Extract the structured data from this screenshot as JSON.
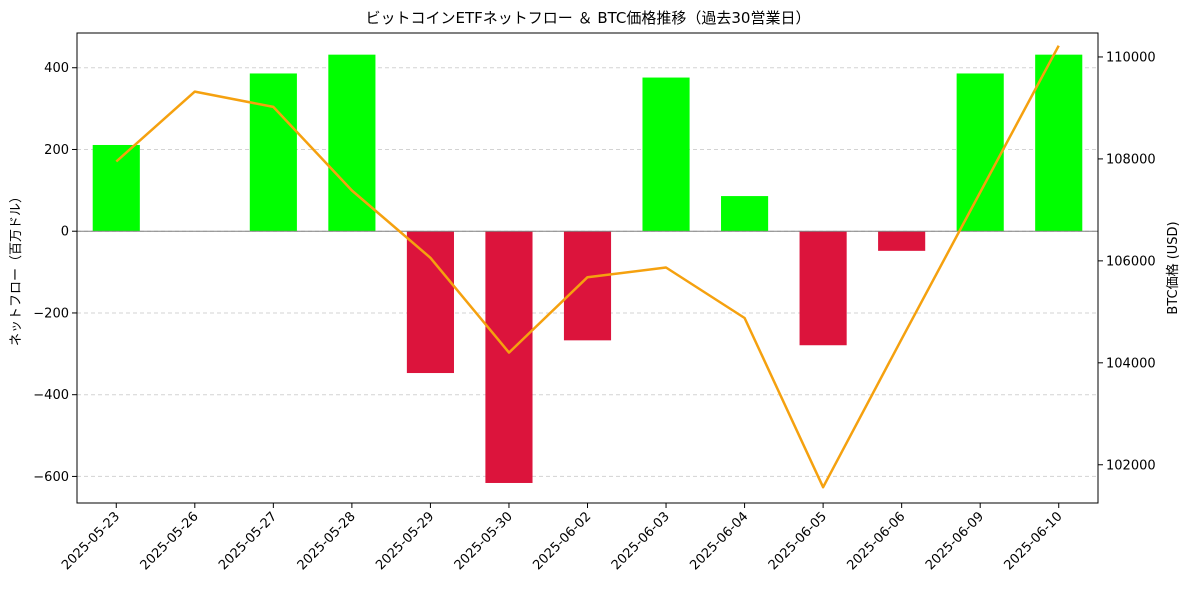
{
  "chart_data": {
    "type": "bar",
    "title": "ビットコインETFネットフロー ＆ BTC価格推移（過去30営業日）",
    "xlabel": "",
    "ylabel": "ネットフロー（百万ドル）",
    "y2label": "BTC価格 (USD)",
    "categories": [
      "2025-05-23",
      "2025-05-26",
      "2025-05-27",
      "2025-05-28",
      "2025-05-29",
      "2025-05-30",
      "2025-06-02",
      "2025-06-03",
      "2025-06-04",
      "2025-06-05",
      "2025-06-06",
      "2025-06-09",
      "2025-06-10"
    ],
    "series": [
      {
        "axis": "left",
        "kind": "bar",
        "values": [
          211,
          0,
          386,
          432,
          -347,
          -616,
          -267,
          376,
          86,
          -279,
          -48,
          386,
          432
        ]
      },
      {
        "axis": "right",
        "kind": "line",
        "values": [
          107950,
          109320,
          109020,
          107380,
          106060,
          104200,
          105680,
          105870,
          104880,
          101560,
          104470,
          null,
          110220
        ]
      }
    ],
    "ylim": [
      -665,
      485
    ],
    "y_ticks": [
      400,
      200,
      0,
      -200,
      -400,
      -600
    ],
    "y2lim": [
      101250,
      110470
    ],
    "y2_ticks": [
      110000,
      108000,
      106000,
      104000,
      102000
    ],
    "grid": "horizontal-dashed",
    "colors": {
      "positive_bar": "#00ff00",
      "negative_bar": "#dc143c",
      "price_line": "#f5a10f",
      "zero_line": "#808080",
      "grid": "#d3d3d3"
    }
  }
}
